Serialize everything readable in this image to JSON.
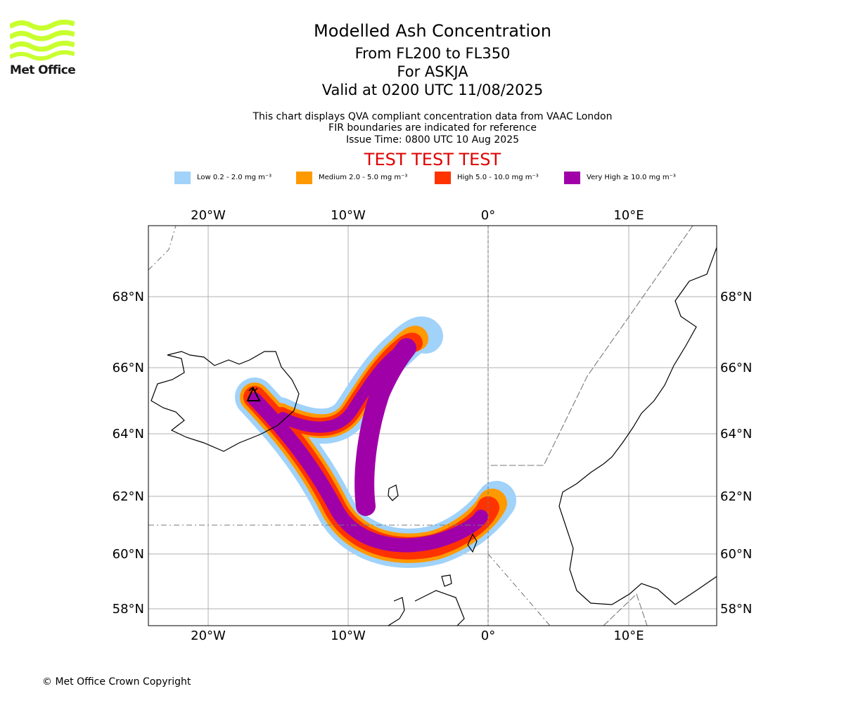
{
  "brand": {
    "name": "Met Office",
    "logo_color": "#c8ff2e"
  },
  "title": {
    "main": "Modelled Ash Concentration",
    "levels": "From FL200 to FL350",
    "volcano": "For ASKJA",
    "valid": "Valid at 0200 UTC 11/08/2025"
  },
  "subtitle": {
    "line1": "This chart displays QVA compliant concentration data from VAAC London",
    "line2": "FIR boundaries are indicated for reference",
    "line3": "Issue Time: 0800 UTC 10 Aug 2025"
  },
  "test_banner": {
    "text": "TEST TEST TEST",
    "color": "#e00000"
  },
  "legend": [
    {
      "label": "Low 0.2 - 2.0 mg m⁻³",
      "color": "#a0d2fa"
    },
    {
      "label": "Medium 2.0 - 5.0 mg m⁻³",
      "color": "#ff9900"
    },
    {
      "label": "High 5.0 - 10.0 mg m⁻³",
      "color": "#ff3300"
    },
    {
      "label": "Very High  ≥  10.0 mg m⁻³",
      "color": "#a000a8"
    }
  ],
  "map": {
    "lon_labels": [
      "20°W",
      "10°W",
      "0°",
      "10°E"
    ],
    "lat_labels": [
      "68°N",
      "66°N",
      "64°N",
      "62°N",
      "60°N",
      "58°N"
    ],
    "volcano_icon": "volcano-triangle-icon"
  },
  "footer": {
    "copyright": "© Met Office Crown Copyright"
  }
}
